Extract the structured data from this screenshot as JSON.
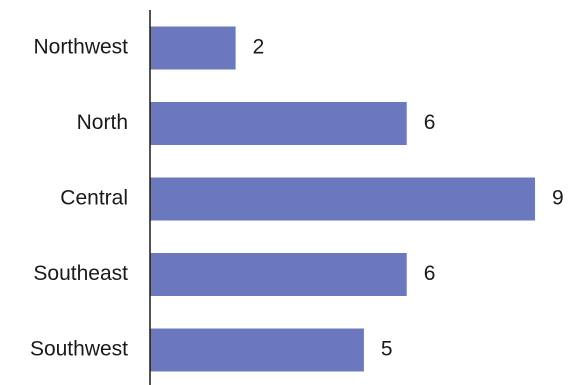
{
  "chart_data": {
    "type": "bar",
    "orientation": "horizontal",
    "categories": [
      "Northwest",
      "North",
      "Central",
      "Southeast",
      "Southwest"
    ],
    "values": [
      2,
      6,
      9,
      6,
      5
    ],
    "xlim": [
      0,
      9
    ],
    "grid": false,
    "data_labels": true,
    "bar_color": "#6b78bd",
    "axis_color": "#1a1a1a"
  }
}
